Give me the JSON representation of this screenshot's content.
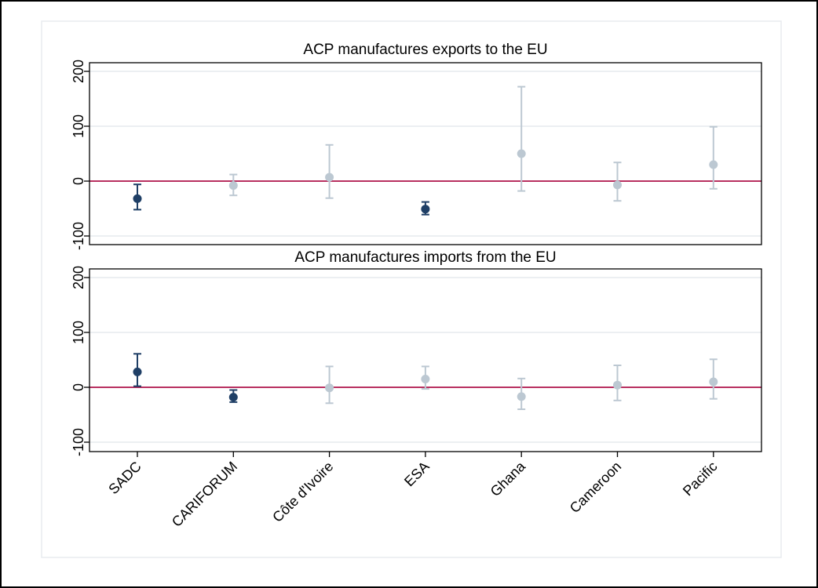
{
  "chart_data": [
    {
      "type": "scatter",
      "title": "ACP manufactures exports to the EU",
      "xlabel": "",
      "ylabel": "",
      "ylim": [
        -118,
        220
      ],
      "yticks": [
        -100,
        0,
        100,
        200
      ],
      "grid": true,
      "reference_line": 0,
      "categories": [
        "SADC",
        "CARIFORUM",
        "Côte d'Ivoire",
        "ESA",
        "Ghana",
        "Cameroon",
        "Pacific"
      ],
      "points": [
        {
          "category": "SADC",
          "y": -32,
          "ci": [
            -52,
            -6
          ],
          "highlight": true
        },
        {
          "category": "CARIFORUM",
          "y": -8,
          "ci": [
            -26,
            12
          ],
          "highlight": false
        },
        {
          "category": "Côte d'Ivoire",
          "y": 7,
          "ci": [
            -31,
            66
          ],
          "highlight": false
        },
        {
          "category": "ESA",
          "y": -51,
          "ci": [
            -61,
            -38
          ],
          "highlight": true
        },
        {
          "category": "Ghana",
          "y": 50,
          "ci": [
            -18,
            172
          ],
          "highlight": false
        },
        {
          "category": "Cameroon",
          "y": -7,
          "ci": [
            -36,
            34
          ],
          "highlight": false
        },
        {
          "category": "Pacific",
          "y": 30,
          "ci": [
            -14,
            99
          ],
          "highlight": false
        }
      ]
    },
    {
      "type": "scatter",
      "title": "ACP manufactures imports from the EU",
      "xlabel": "",
      "ylabel": "",
      "ylim": [
        -118,
        220
      ],
      "yticks": [
        -100,
        0,
        100,
        200
      ],
      "grid": true,
      "reference_line": 0,
      "categories": [
        "SADC",
        "CARIFORUM",
        "Côte d'Ivoire",
        "ESA",
        "Ghana",
        "Cameroon",
        "Pacific"
      ],
      "points": [
        {
          "category": "SADC",
          "y": 28,
          "ci": [
            2,
            61
          ],
          "highlight": true
        },
        {
          "category": "CARIFORUM",
          "y": -18,
          "ci": [
            -27,
            -5
          ],
          "highlight": true
        },
        {
          "category": "Côte d'Ivoire",
          "y": -1,
          "ci": [
            -29,
            38
          ],
          "highlight": false
        },
        {
          "category": "ESA",
          "y": 15,
          "ci": [
            -3,
            38
          ],
          "highlight": false
        },
        {
          "category": "Ghana",
          "y": -17,
          "ci": [
            -40,
            16
          ],
          "highlight": false
        },
        {
          "category": "Cameroon",
          "y": 4,
          "ci": [
            -24,
            40
          ],
          "highlight": false
        },
        {
          "category": "Pacific",
          "y": 10,
          "ci": [
            -21,
            51
          ],
          "highlight": false
        }
      ]
    }
  ],
  "colors": {
    "highlight": "#1f3f66",
    "muted": "#bcc8d2",
    "reference_line": "#b0144a",
    "grid": "#e6eaee",
    "axis": "#000000",
    "outer_border": "#000000",
    "inner_border": "#e8ecef"
  }
}
